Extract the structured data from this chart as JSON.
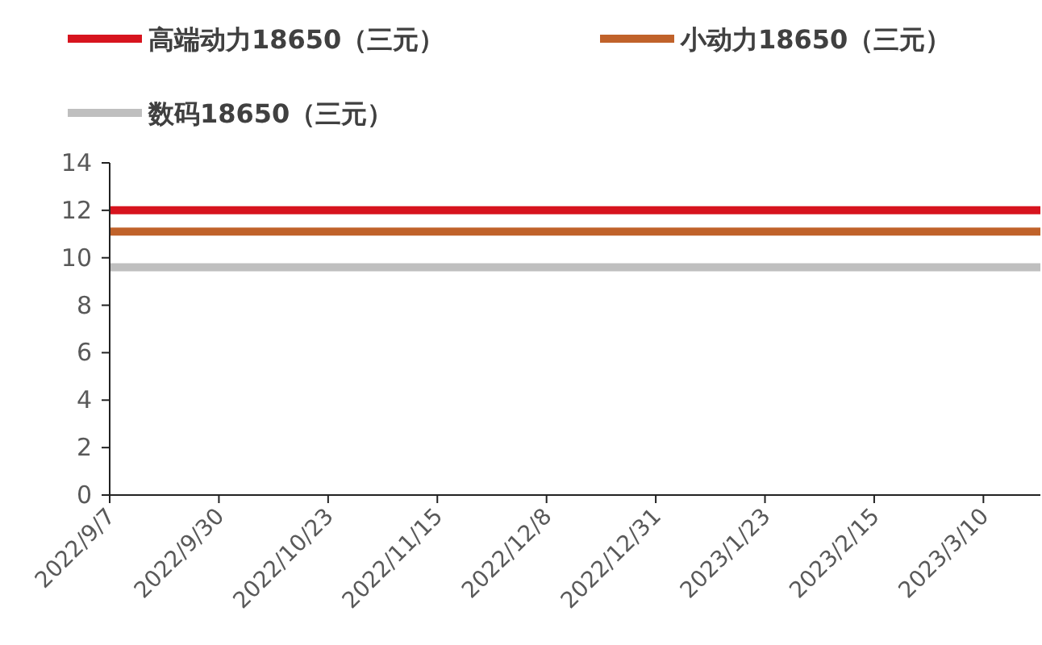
{
  "chart_data": {
    "type": "line",
    "series": [
      {
        "name": "高端动力18650（三元）",
        "color": "#d7141e",
        "x": [
          "2022-09-07",
          "2023-03-22"
        ],
        "values": [
          12,
          12
        ]
      },
      {
        "name": "小动力18650（三元）",
        "color": "#c0622a",
        "x": [
          "2022-09-07",
          "2023-03-22"
        ],
        "values": [
          11.1,
          11.1
        ]
      },
      {
        "name": "数码18650（三元）",
        "color": "#bfbfbf",
        "x": [
          "2022-09-07",
          "2023-03-22"
        ],
        "values": [
          9.6,
          9.6
        ]
      }
    ],
    "xlim": [
      "2022-09-07",
      "2023-03-22"
    ],
    "xticks": [
      {
        "value": "2022-09-07",
        "label": "2022/9/7"
      },
      {
        "value": "2022-09-30",
        "label": "2022/9/30"
      },
      {
        "value": "2022-10-23",
        "label": "2022/10/23"
      },
      {
        "value": "2022-11-15",
        "label": "2022/11/15"
      },
      {
        "value": "2022-12-08",
        "label": "2022/12/8"
      },
      {
        "value": "2022-12-31",
        "label": "2022/12/31"
      },
      {
        "value": "2023-01-23",
        "label": "2023/1/23"
      },
      {
        "value": "2023-02-15",
        "label": "2023/2/15"
      },
      {
        "value": "2023-03-10",
        "label": "2023/3/10"
      }
    ],
    "ylim": [
      0,
      14
    ],
    "yticks": [
      0,
      2,
      4,
      6,
      8,
      10,
      12,
      14
    ],
    "legend": "top",
    "grid": false,
    "marker": "none",
    "line_style": "solid"
  }
}
